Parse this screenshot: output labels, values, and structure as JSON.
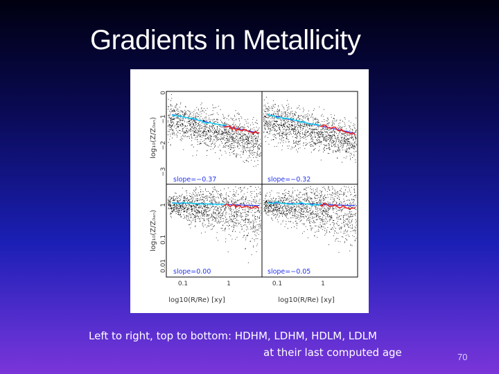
{
  "slide": {
    "title": "Gradients in Metallicity",
    "caption_line1": "Left to right, top to bottom: HDHM, LDHM, HDLM, LDLM",
    "caption_line2": "at their last computed  age",
    "slide_number": "70"
  },
  "figure": {
    "panels": [
      {
        "slope_label": "slope=−0.37"
      },
      {
        "slope_label": "slope=−0.32"
      },
      {
        "slope_label": "slope=0.00"
      },
      {
        "slope_label": "slope=−0.05"
      }
    ],
    "ylabel_top": "log₁₀(Z/Z₀ₐₙ)",
    "ylabel_bottom": "log₁₀(Z/Z₀ₐₙ)",
    "xlabel_left": "log10(R/Re) [xy]",
    "xlabel_right": "log10(R/Re) [xy]",
    "yticks_top": [
      "0",
      "−1",
      "−2",
      "−3"
    ],
    "yticks_bottom": [
      "1",
      "0.1",
      "0.01"
    ],
    "xticks": [
      "0.1",
      "1"
    ],
    "colors": {
      "scatter": "#000000",
      "fit_line": "#2233ee",
      "cyan": "#22d8ee",
      "red": "#ee2222"
    }
  }
}
